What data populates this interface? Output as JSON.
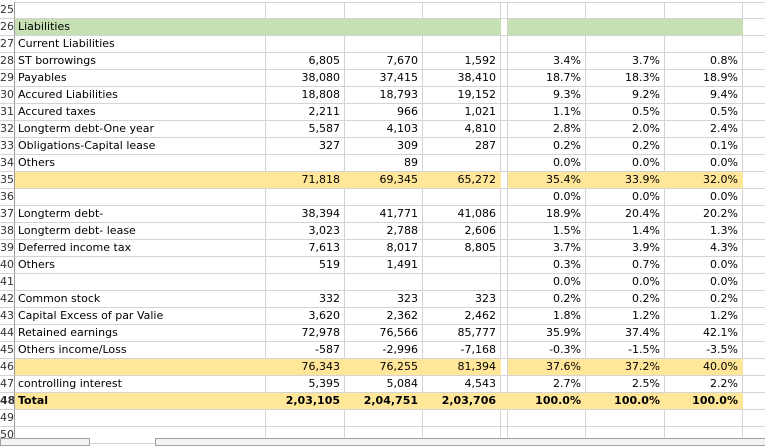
{
  "colors": {
    "header_fill": "#c6e0b4",
    "subtotal_fill": "#ffe699",
    "gridline": "#d4d4d4"
  },
  "rows": [
    {
      "n": "25",
      "label": "",
      "vals": [
        "",
        "",
        ""
      ],
      "pcts": [
        "",
        "",
        ""
      ]
    },
    {
      "n": "26",
      "label": "Liabilities",
      "vals": [
        "",
        "",
        ""
      ],
      "pcts": [
        "",
        "",
        ""
      ],
      "fill": "green"
    },
    {
      "n": "27",
      "label": "Current Liabilities",
      "vals": [
        "",
        "",
        ""
      ],
      "pcts": [
        "",
        "",
        ""
      ]
    },
    {
      "n": "28",
      "label": "ST borrowings",
      "vals": [
        "6,805",
        "7,670",
        "1,592"
      ],
      "pcts": [
        "3.4%",
        "3.7%",
        "0.8%"
      ]
    },
    {
      "n": "29",
      "label": "Payables",
      "vals": [
        "38,080",
        "37,415",
        "38,410"
      ],
      "pcts": [
        "18.7%",
        "18.3%",
        "18.9%"
      ]
    },
    {
      "n": "30",
      "label": "Accured Liabilities",
      "vals": [
        "18,808",
        "18,793",
        "19,152"
      ],
      "pcts": [
        "9.3%",
        "9.2%",
        "9.4%"
      ]
    },
    {
      "n": "31",
      "label": "Accured taxes",
      "vals": [
        "2,211",
        "966",
        "1,021"
      ],
      "pcts": [
        "1.1%",
        "0.5%",
        "0.5%"
      ]
    },
    {
      "n": "32",
      "label": "Longterm debt-One year",
      "vals": [
        "5,587",
        "4,103",
        "4,810"
      ],
      "pcts": [
        "2.8%",
        "2.0%",
        "2.4%"
      ]
    },
    {
      "n": "33",
      "label": "Obligations-Capital lease",
      "vals": [
        "327",
        "309",
        "287"
      ],
      "pcts": [
        "0.2%",
        "0.2%",
        "0.1%"
      ]
    },
    {
      "n": "34",
      "label": "Others",
      "vals": [
        "",
        "89",
        ""
      ],
      "pcts": [
        "0.0%",
        "0.0%",
        "0.0%"
      ]
    },
    {
      "n": "35",
      "label": "",
      "vals": [
        "71,818",
        "69,345",
        "65,272"
      ],
      "pcts": [
        "35.4%",
        "33.9%",
        "32.0%"
      ],
      "fill": "yellow"
    },
    {
      "n": "36",
      "label": "",
      "vals": [
        "",
        "",
        ""
      ],
      "pcts": [
        "0.0%",
        "0.0%",
        "0.0%"
      ]
    },
    {
      "n": "37",
      "label": "Longterm debt-",
      "vals": [
        "38,394",
        "41,771",
        "41,086"
      ],
      "pcts": [
        "18.9%",
        "20.4%",
        "20.2%"
      ]
    },
    {
      "n": "38",
      "label": "Longterm debt- lease",
      "vals": [
        "3,023",
        "2,788",
        "2,606"
      ],
      "pcts": [
        "1.5%",
        "1.4%",
        "1.3%"
      ]
    },
    {
      "n": "39",
      "label": "Deferred income tax",
      "vals": [
        "7,613",
        "8,017",
        "8,805"
      ],
      "pcts": [
        "3.7%",
        "3.9%",
        "4.3%"
      ]
    },
    {
      "n": "40",
      "label": "Others",
      "vals": [
        "519",
        "1,491",
        ""
      ],
      "pcts": [
        "0.3%",
        "0.7%",
        "0.0%"
      ]
    },
    {
      "n": "41",
      "label": "",
      "vals": [
        "",
        "",
        ""
      ],
      "pcts": [
        "0.0%",
        "0.0%",
        "0.0%"
      ]
    },
    {
      "n": "42",
      "label": "Common stock",
      "vals": [
        "332",
        "323",
        "323"
      ],
      "pcts": [
        "0.2%",
        "0.2%",
        "0.2%"
      ]
    },
    {
      "n": "43",
      "label": "Capital Excess of par Valie",
      "vals": [
        "3,620",
        "2,362",
        "2,462"
      ],
      "pcts": [
        "1.8%",
        "1.2%",
        "1.2%"
      ]
    },
    {
      "n": "44",
      "label": "Retained earnings",
      "vals": [
        "72,978",
        "76,566",
        "85,777"
      ],
      "pcts": [
        "35.9%",
        "37.4%",
        "42.1%"
      ]
    },
    {
      "n": "45",
      "label": "Others income/Loss",
      "vals": [
        "-587",
        "-2,996",
        "-7,168"
      ],
      "pcts": [
        "-0.3%",
        "-1.5%",
        "-3.5%"
      ]
    },
    {
      "n": "46",
      "label": "",
      "vals": [
        "76,343",
        "76,255",
        "81,394"
      ],
      "pcts": [
        "37.6%",
        "37.2%",
        "40.0%"
      ],
      "fill": "yellow"
    },
    {
      "n": "47",
      "label": "controlling interest",
      "vals": [
        "5,395",
        "5,084",
        "4,543"
      ],
      "pcts": [
        "2.7%",
        "2.5%",
        "2.2%"
      ]
    },
    {
      "n": "48",
      "label": "Total",
      "vals": [
        "2,03,105",
        "2,04,751",
        "2,03,706"
      ],
      "pcts": [
        "100.0%",
        "100.0%",
        "100.0%"
      ],
      "fill": "yellow",
      "bold": true,
      "fillGap": true
    },
    {
      "n": "49",
      "label": "",
      "vals": [
        "",
        "",
        ""
      ],
      "pcts": [
        "",
        "",
        ""
      ]
    },
    {
      "n": "50",
      "label": "",
      "vals": [
        "",
        "",
        ""
      ],
      "pcts": [
        "",
        "",
        ""
      ]
    }
  ]
}
